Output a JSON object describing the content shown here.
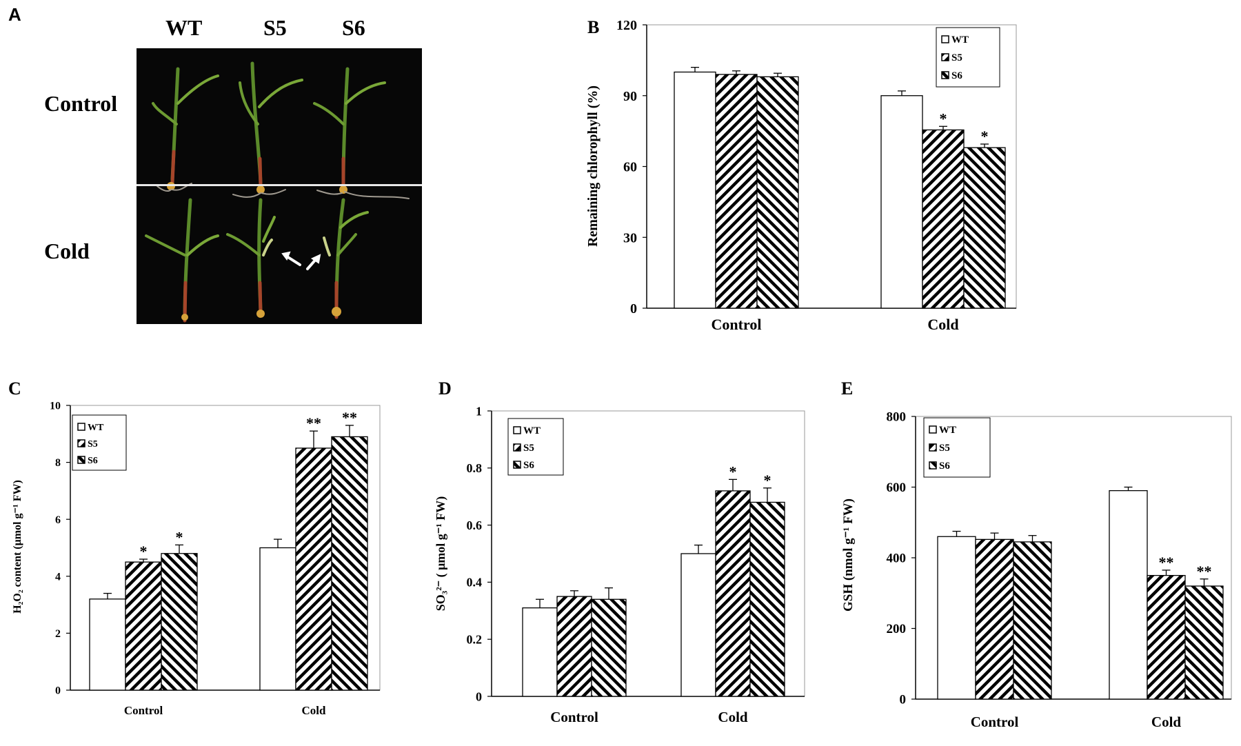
{
  "panels": {
    "A": {
      "letter": "A",
      "columns": [
        "WT",
        "S5",
        "S6"
      ],
      "rows": [
        "Control",
        "Cold"
      ]
    }
  },
  "chart_data": [
    {
      "id": "B",
      "letter": "B",
      "type": "bar",
      "categories": [
        "Control",
        "Cold"
      ],
      "series": [
        {
          "name": "WT",
          "pattern": "white",
          "values": [
            100,
            90
          ],
          "errors": [
            2,
            2
          ],
          "sig": [
            "",
            ""
          ]
        },
        {
          "name": "S5",
          "pattern": "hatch-right",
          "values": [
            99,
            75.5
          ],
          "errors": [
            1.5,
            1.5
          ],
          "sig": [
            "",
            "*"
          ]
        },
        {
          "name": "S6",
          "pattern": "hatch-left",
          "values": [
            98,
            68
          ],
          "errors": [
            1.5,
            1.5
          ],
          "sig": [
            "",
            "*"
          ]
        }
      ],
      "ylabel": "Remaining chlorophyll (%)",
      "ylim": [
        0,
        120
      ],
      "yticks": [
        "0",
        "30",
        "60",
        "90",
        "120"
      ],
      "legend": "top-right",
      "grid": false
    },
    {
      "id": "C",
      "letter": "C",
      "type": "bar",
      "categories": [
        "Control",
        "Cold"
      ],
      "series": [
        {
          "name": "WT",
          "pattern": "white",
          "values": [
            3.2,
            5.0
          ],
          "errors": [
            0.2,
            0.3
          ],
          "sig": [
            "",
            ""
          ]
        },
        {
          "name": "S5",
          "pattern": "hatch-right",
          "values": [
            4.5,
            8.5
          ],
          "errors": [
            0.1,
            0.6
          ],
          "sig": [
            "*",
            "**"
          ]
        },
        {
          "name": "S6",
          "pattern": "hatch-left",
          "values": [
            4.8,
            8.9
          ],
          "errors": [
            0.3,
            0.4
          ],
          "sig": [
            "*",
            "**"
          ]
        }
      ],
      "ylabel": "H₂O₂ content (μmol g⁻¹ FW)",
      "ylim": [
        0,
        10
      ],
      "yticks": [
        "0",
        "2",
        "4",
        "6",
        "8",
        "10"
      ],
      "legend": "top-left",
      "grid": false
    },
    {
      "id": "D",
      "letter": "D",
      "type": "bar",
      "categories": [
        "Control",
        "Cold"
      ],
      "series": [
        {
          "name": "WT",
          "pattern": "white",
          "values": [
            0.31,
            0.5
          ],
          "errors": [
            0.03,
            0.03
          ],
          "sig": [
            "",
            ""
          ]
        },
        {
          "name": "S5",
          "pattern": "hatch-right",
          "values": [
            0.35,
            0.72
          ],
          "errors": [
            0.02,
            0.04
          ],
          "sig": [
            "",
            "*"
          ]
        },
        {
          "name": "S6",
          "pattern": "hatch-left",
          "values": [
            0.34,
            0.68
          ],
          "errors": [
            0.04,
            0.05
          ],
          "sig": [
            "",
            "*"
          ]
        }
      ],
      "ylabel": "SO₃²⁻ ( μmol g⁻¹ FW)",
      "ylim": [
        0,
        1
      ],
      "yticks": [
        "0",
        "0.2",
        "0.4",
        "0.6",
        "0.8",
        "1"
      ],
      "legend": "top-left",
      "grid": false
    },
    {
      "id": "E",
      "letter": "E",
      "type": "bar",
      "categories": [
        "Control",
        "Cold"
      ],
      "series": [
        {
          "name": "WT",
          "pattern": "white",
          "values": [
            460,
            590
          ],
          "errors": [
            15,
            10
          ],
          "sig": [
            "",
            ""
          ]
        },
        {
          "name": "S5",
          "pattern": "hatch-right",
          "values": [
            452,
            350
          ],
          "errors": [
            18,
            15
          ],
          "sig": [
            "",
            "**"
          ]
        },
        {
          "name": "S6",
          "pattern": "hatch-left",
          "values": [
            445,
            320
          ],
          "errors": [
            18,
            20
          ],
          "sig": [
            "",
            "**"
          ]
        }
      ],
      "ylabel": "GSH (nmol g⁻¹ FW)",
      "ylim": [
        0,
        800
      ],
      "yticks": [
        "0",
        "200",
        "400",
        "600",
        "800"
      ],
      "legend": "top-left",
      "grid": false
    }
  ]
}
